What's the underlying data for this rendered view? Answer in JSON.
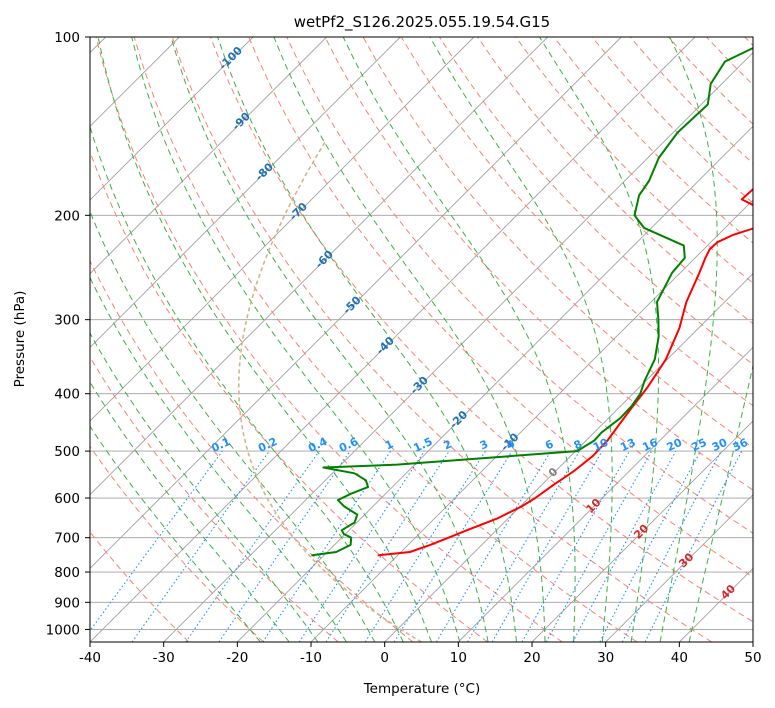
{
  "chart_data": {
    "type": "line",
    "title": "wetPf2_S126.2025.055.19.54.G15",
    "xlabel": "Temperature (°C)",
    "ylabel": "Pressure (hPa)",
    "xlim": [
      -40,
      50
    ],
    "ylim": [
      1050,
      100
    ],
    "y_scale": "log",
    "grid": true,
    "x_ticks": [
      -40,
      -30,
      -20,
      -10,
      0,
      10,
      20,
      30,
      40,
      50
    ],
    "y_ticks": [
      100,
      200,
      300,
      400,
      500,
      600,
      700,
      800,
      900,
      1000
    ],
    "series": [
      {
        "name": "",
        "color": "#ff0000",
        "x": [
          -12.7,
          -8.8,
          -7.0,
          -5.5,
          -4.0,
          -1.5,
          0.2,
          0.9,
          1.6,
          2.5,
          3.0,
          2.9,
          2.3,
          1.7,
          1.3,
          1.1,
          -0.2,
          -2.6,
          -5.2,
          -7.4,
          -8.6,
          -9.2,
          -9.1,
          -8.0,
          -3.5,
          -11.6,
          -11.3,
          -17.2,
          -21.0,
          -22.0
        ],
        "y": [
          750,
          740,
          720,
          700,
          680,
          650,
          620,
          600,
          570,
          540,
          510,
          480,
          450,
          420,
          400,
          390,
          350,
          310,
          280,
          250,
          236,
          228,
          222,
          216,
          203,
          188,
          172,
          140,
          113,
          100
        ]
      },
      {
        "name": "",
        "color": "#008000",
        "x": [
          -21.7,
          -18.8,
          -17.8,
          -18.7,
          -20.2,
          -21.0,
          -20.3,
          -21.0,
          -23.9,
          -25.6,
          -24.7,
          -23.3,
          -24.5,
          -27.0,
          -32.0,
          -22.4,
          0.2,
          1.1,
          1.0,
          1.6,
          1.5,
          1.0,
          -0.2,
          -1.7,
          -4.3,
          -6.6,
          -9.2,
          -11.1,
          -11.4,
          -13.2,
          -21.0,
          -24.0,
          -26.1,
          -26.7,
          -28.5,
          -29.4,
          -29.1,
          -31.5,
          -32.6,
          -29.0
        ],
        "y": [
          750,
          740,
          720,
          700,
          690,
          680,
          660,
          640,
          620,
          605,
          590,
          575,
          560,
          545,
          533,
          527,
          500,
          480,
          465,
          440,
          420,
          400,
          380,
          350,
          320,
          300,
          280,
          250,
          236,
          225,
          210,
          200,
          185,
          175,
          160,
          145,
          130,
          120,
          110,
          100
        ]
      }
    ],
    "isotherm_labels": [
      "-100",
      "-90",
      "-80",
      "-70",
      "-60",
      "-50",
      "-40",
      "-30",
      "-20",
      "-10"
    ],
    "isotherm_label_values": [
      -100,
      -90,
      -80,
      -70,
      -60,
      -50,
      -40,
      -30,
      -20,
      -10
    ],
    "mixing_ratio_labels": [
      "0.1",
      "0.2",
      "0.4",
      "0.6",
      "1",
      "1.5",
      "2",
      "3",
      "4",
      "6",
      "8",
      "10",
      "13",
      "16",
      "20",
      "25",
      "30",
      "36"
    ],
    "mixing_ratio_values": [
      0.1,
      0.2,
      0.4,
      0.6,
      1,
      1.5,
      2,
      3,
      4,
      6,
      8,
      10,
      13,
      16,
      20,
      25,
      30,
      36
    ],
    "upper_isotherm_labels": [
      "0",
      "10",
      "20",
      "30",
      "40"
    ],
    "upper_isotherm_values": [
      0,
      10,
      20,
      30,
      40
    ],
    "colors": {
      "temperature": "#ff0000",
      "dewpoint": "#008000",
      "isotherm_label": "#1f6fb4",
      "mixing_ratio": "#1e90ff",
      "upper_label_zero": "#808080",
      "upper_label": "#d62728",
      "dry_adiabat": "#fa8072",
      "moist_adiabat": "#3cb043",
      "skewed_grid": "#a0a0a0",
      "reference_curve": "#d2b48c"
    }
  }
}
